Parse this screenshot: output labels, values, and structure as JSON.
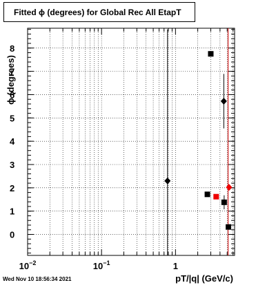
{
  "chart_data": {
    "type": "scatter",
    "title": "Fitted ϕ (degrees) for Global Rec All EtapT",
    "xlabel": "pT/|q| (GeV/c)",
    "ylabel": "ϕ (degrees)",
    "x_scale": "log",
    "xlim": [
      0.01,
      6.3
    ],
    "ylim": [
      -0.9,
      8.85
    ],
    "x_ticks": [
      {
        "value": 0.01,
        "base": "10",
        "exp": "−2"
      },
      {
        "value": 0.1,
        "base": "10",
        "exp": "−1"
      },
      {
        "value": 1,
        "base": "1",
        "exp": ""
      }
    ],
    "y_ticks": [
      "0",
      "1",
      "2",
      "3",
      "4",
      "5",
      "6",
      "7",
      "8"
    ],
    "grid": true,
    "reference_line": {
      "x": 5.15,
      "color": "#cc0000"
    },
    "series": [
      {
        "marker": "square",
        "color": "#000000",
        "points": [
          {
            "x": 3.0,
            "y": 7.75,
            "yerr": 0
          },
          {
            "x": 2.7,
            "y": 1.72,
            "yerr": 0
          },
          {
            "x": 4.55,
            "y": 1.38,
            "yerr": 0.3
          },
          {
            "x": 5.2,
            "y": 0.32,
            "yerr": 0
          }
        ]
      },
      {
        "marker": "diamond",
        "color": "#000000",
        "points": [
          {
            "x": 0.78,
            "y": 2.3,
            "yerr": 6.5
          },
          {
            "x": 4.5,
            "y": 5.72,
            "yerr": 1.17
          }
        ]
      },
      {
        "marker": "square",
        "color": "#ee0000",
        "points": [
          {
            "x": 3.55,
            "y": 1.62,
            "yerr": 0
          }
        ]
      },
      {
        "marker": "diamond",
        "color": "#ee0000",
        "points": [
          {
            "x": 5.3,
            "y": 2.02,
            "yerr": 0
          }
        ]
      }
    ]
  },
  "footer": {
    "timestamp": "Wed Nov 10 18:56:34 2021"
  }
}
